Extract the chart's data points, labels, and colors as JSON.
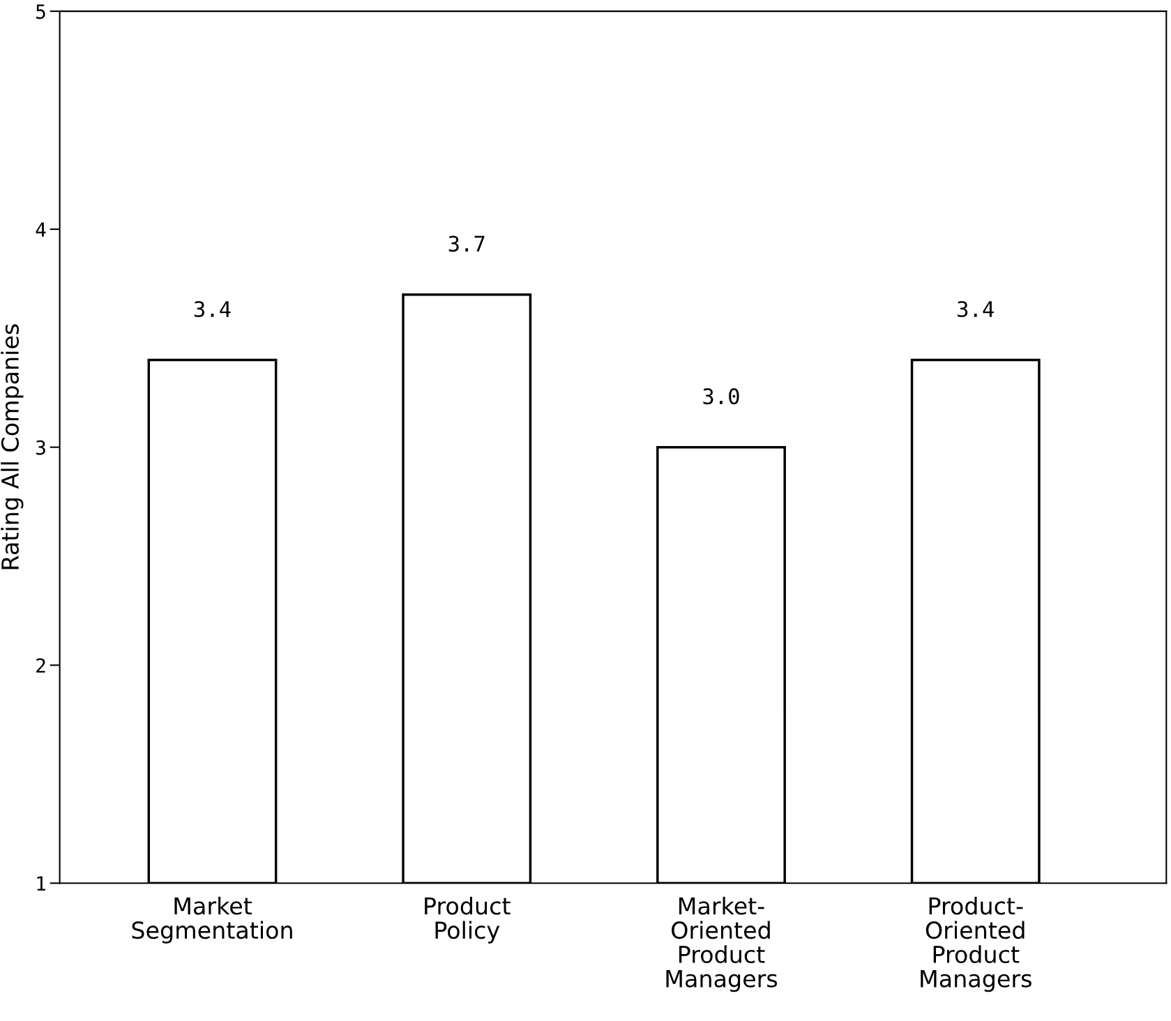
{
  "chart_data": {
    "type": "bar",
    "ylabel": "Rating All Companies",
    "categories": [
      "Market\nSegmentation",
      "Product\nPolicy",
      "Market-\nOriented\nProduct\nManagers",
      "Product-\nOriented\nProduct\nManagers"
    ],
    "values": [
      3.4,
      3.7,
      3.0,
      3.4
    ],
    "color": "#ffffff",
    "ylim": [
      1,
      5
    ],
    "yticks": [
      1,
      2,
      3,
      4,
      5
    ],
    "value_labels": [
      "3.4",
      "3.7",
      "3.0",
      "3.4"
    ],
    "grid": false,
    "legend": false
  }
}
